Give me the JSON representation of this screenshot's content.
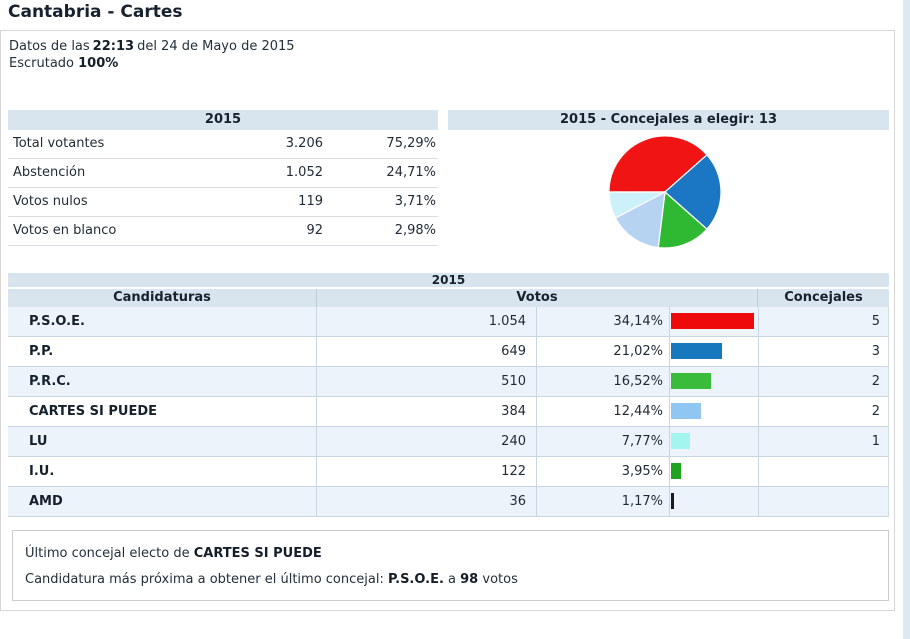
{
  "page": {
    "title": "Cantabria - Cartes",
    "info": {
      "datos_prefix": "Datos de las",
      "time": "22:13",
      "datos_suffix": "del 24 de Mayo de 2015",
      "escrutado_label": "Escrutado",
      "escrutado_value": "100%"
    }
  },
  "summary_table": {
    "header": "2015",
    "rows": [
      {
        "label": "Total votantes",
        "value": "3.206",
        "pct": "75,29%"
      },
      {
        "label": "Abstención",
        "value": "1.052",
        "pct": "24,71%"
      },
      {
        "label": "Votos nulos",
        "value": "119",
        "pct": "3,71%"
      },
      {
        "label": "Votos en blanco",
        "value": "92",
        "pct": "2,98%"
      }
    ]
  },
  "pie_panel": {
    "header": "2015 - Concejales a elegir: 13"
  },
  "results_table": {
    "year_header": "2015",
    "columns": {
      "candidaturas": "Candidaturas",
      "votos": "Votos",
      "concejales": "Concejales"
    },
    "rows": [
      {
        "party": "P.S.O.E.",
        "votes": "1.054",
        "pct": "34,14%",
        "pct_value": 34.14,
        "bar_color": "#ee0a0a",
        "seats": "5"
      },
      {
        "party": "P.P.",
        "votes": "649",
        "pct": "21,02%",
        "pct_value": 21.02,
        "bar_color": "#1878be",
        "seats": "3"
      },
      {
        "party": "P.R.C.",
        "votes": "510",
        "pct": "16,52%",
        "pct_value": 16.52,
        "bar_color": "#3bbb3b",
        "seats": "2"
      },
      {
        "party": "CARTES SI PUEDE",
        "votes": "384",
        "pct": "12,44%",
        "pct_value": 12.44,
        "bar_color": "#8fc7f2",
        "seats": "2"
      },
      {
        "party": "LU",
        "votes": "240",
        "pct": "7,77%",
        "pct_value": 7.77,
        "bar_color": "#a4f4f0",
        "seats": "1"
      },
      {
        "party": "I.U.",
        "votes": "122",
        "pct": "3,95%",
        "pct_value": 3.95,
        "bar_color": "#1da31d",
        "seats": ""
      },
      {
        "party": "AMD",
        "votes": "36",
        "pct": "1,17%",
        "pct_value": 1.17,
        "bar_color": "#1a1a1a",
        "seats": ""
      }
    ]
  },
  "chart_data": [
    {
      "type": "pie",
      "title": "2015 - Concejales a elegir: 13",
      "unit": "concejales",
      "total": 13,
      "slices": [
        {
          "name": "P.S.O.E.",
          "value": 5,
          "color": "#f01414"
        },
        {
          "name": "P.P.",
          "value": 3,
          "color": "#1b76c4"
        },
        {
          "name": "P.R.C.",
          "value": 2,
          "color": "#2fb832"
        },
        {
          "name": "CARTES SI PUEDE",
          "value": 2,
          "color": "#b6d3f2"
        },
        {
          "name": "LU",
          "value": 1,
          "color": "#cdf1fa"
        }
      ],
      "start_angle_deg": 180,
      "direction": "clockwise",
      "legend": "none"
    },
    {
      "type": "bar",
      "orientation": "horizontal",
      "title": "Votos",
      "unit": "%",
      "categories": [
        "P.S.O.E.",
        "P.P.",
        "P.R.C.",
        "CARTES SI PUEDE",
        "LU",
        "I.U.",
        "AMD"
      ],
      "values": [
        34.14,
        21.02,
        16.52,
        12.44,
        7.77,
        3.95,
        1.17
      ],
      "colors": [
        "#ee0a0a",
        "#1878be",
        "#3bbb3b",
        "#8fc7f2",
        "#a4f4f0",
        "#1da31d",
        "#1a1a1a"
      ]
    }
  ],
  "footer_box": {
    "line1_prefix": "Último concejal electo de",
    "line1_bold": "CARTES SI PUEDE",
    "line2_prefix": "Candidatura más próxima a obtener el último concejal:",
    "line2_party": "P.S.O.E.",
    "line2_mid": "a",
    "line2_votes": "98",
    "line2_suffix": "votos"
  },
  "style": {
    "header_bg": "#d8e4ee",
    "alt_row_bg": "#edf3fa",
    "scroll_strip": "#dce8f3"
  }
}
